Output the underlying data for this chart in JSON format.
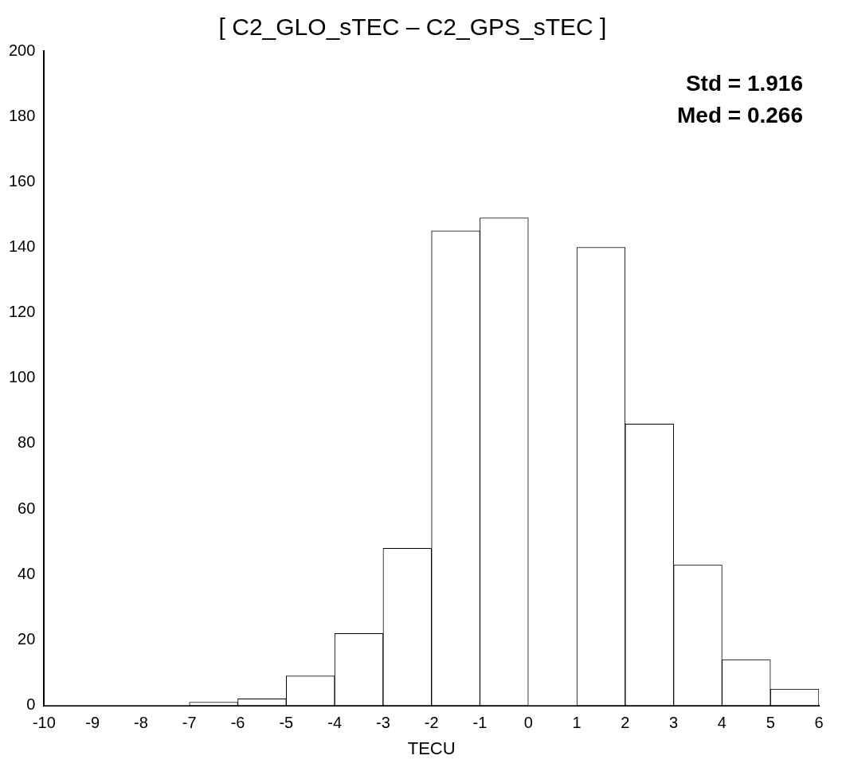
{
  "chart_data": {
    "type": "histogram",
    "title": "[ C2_GLO_sTEC – C2_GPS_sTEC ]",
    "xlabel": "TECU",
    "bins": [
      -10,
      -9,
      -8,
      -7,
      -6,
      -5,
      -4,
      -3,
      -2,
      -1,
      0,
      1,
      2,
      3,
      4,
      5,
      6
    ],
    "values": [
      0,
      0,
      0,
      1,
      2,
      9,
      22,
      48,
      145,
      149,
      0,
      140,
      86,
      43,
      14,
      5
    ],
    "color": "#ffffff",
    "xlim": [
      -10,
      6
    ],
    "xticks": [
      -10,
      -9,
      -8,
      -7,
      -6,
      -5,
      -4,
      -3,
      -2,
      -1,
      0,
      1,
      2,
      3,
      4,
      5,
      6
    ],
    "ylim": [
      0,
      200
    ],
    "yticks": [
      0,
      20,
      40,
      60,
      80,
      100,
      120,
      140,
      160,
      180,
      200
    ],
    "annotations": [
      "Std = 1.916",
      "Med = 0.266"
    ],
    "grid": false,
    "legend": false
  }
}
